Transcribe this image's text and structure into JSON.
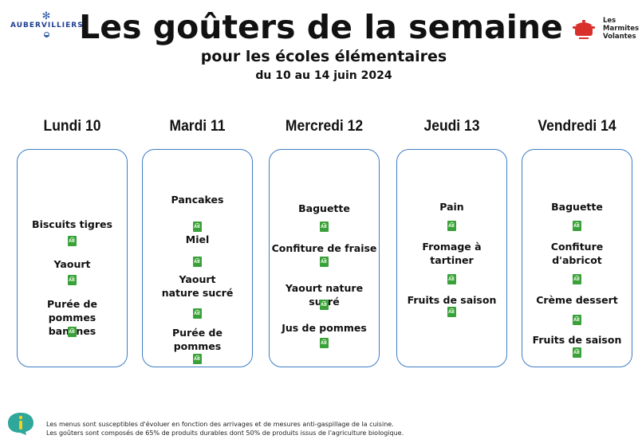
{
  "header": {
    "left_logo": "AUBERVILLIERS",
    "title": "Les goûters de la semaine",
    "subtitle": "pour les écoles élémentaires",
    "dates": "du 10 au 14 juin 2024",
    "right_logo_lines": [
      "Les",
      "Marmites",
      "Volantes"
    ]
  },
  "colors": {
    "card_border": "#3d7dc4",
    "bio_green": "#3aa13a",
    "info_teal": "#2fa79a",
    "pot_red": "#d9302b"
  },
  "days": [
    {
      "label": "Lundi 10",
      "items": [
        {
          "name": "Biscuits tigres",
          "bio": true
        },
        {
          "name": "Yaourt",
          "bio": true
        },
        {
          "name": "Purée de pommes bananes",
          "bio": true
        }
      ]
    },
    {
      "label": "Mardi 11",
      "items": [
        {
          "name": "Pancakes",
          "bio": true
        },
        {
          "name": "Miel",
          "bio": true
        },
        {
          "name": "Yaourt nature sucré",
          "bio": true
        },
        {
          "name": "Purée de pommes",
          "bio": true
        }
      ]
    },
    {
      "label": "Mercredi 12",
      "items": [
        {
          "name": "Baguette",
          "bio": true
        },
        {
          "name": "Confiture de fraise",
          "bio": true
        },
        {
          "name": "Yaourt nature sucré",
          "bio": true
        },
        {
          "name": "Jus de pommes",
          "bio": true
        }
      ]
    },
    {
      "label": "Jeudi 13",
      "items": [
        {
          "name": "Pain",
          "bio": true
        },
        {
          "name": "Fromage à tartiner",
          "bio": true
        },
        {
          "name": "Fruits de saison",
          "bio": true
        }
      ]
    },
    {
      "label": "Vendredi 14",
      "items": [
        {
          "name": "Baguette",
          "bio": true
        },
        {
          "name": "Confiture d'abricot",
          "bio": true
        },
        {
          "name": "Crème dessert",
          "bio": true
        },
        {
          "name": "Fruits de saison",
          "bio": true
        }
      ]
    }
  ],
  "footnotes": [
    "Les menus sont susceptibles d'évoluer en fonction des arrivages et de mesures anti-gaspillage de la cuisine.",
    "Les goûters sont composés de 65% de produits durables dont 50% de produits issus de l'agriculture biologique."
  ]
}
